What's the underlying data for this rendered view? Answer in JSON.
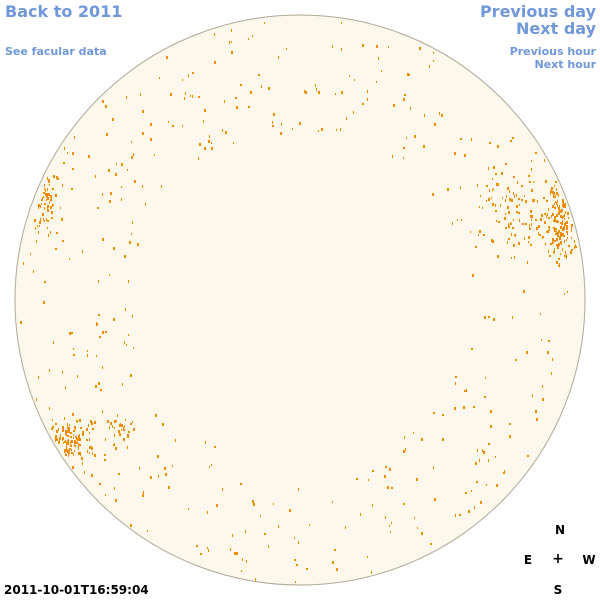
{
  "links": {
    "back": "Back to 2011",
    "facular": "See facular data",
    "prev_day": "Previous day",
    "next_day": "Next day",
    "prev_hour": "Previous hour",
    "next_hour": "Next hour"
  },
  "compass": {
    "north": "N",
    "east": "E",
    "center": "+",
    "west": "W",
    "south": "S"
  },
  "timestamp": "2011-10-01T16:59:04",
  "colors": {
    "link": "#6f97d9",
    "disk_fill": "#fdf8ec",
    "disk_edge": "#b0a898",
    "facula": "#f08c00"
  }
}
